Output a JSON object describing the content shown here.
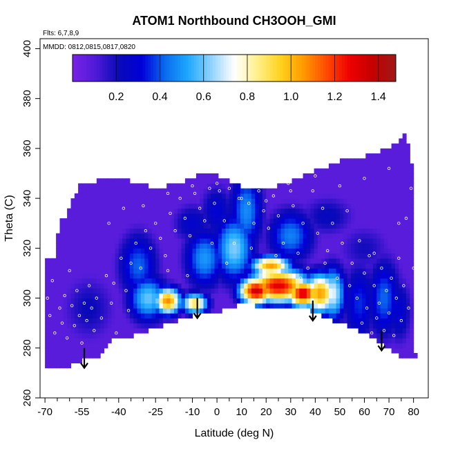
{
  "chart_data": {
    "type": "heatmap",
    "title": "ATOM1 Northbound CH3OOH_GMI",
    "annotations": [
      "Flts: 6,7,8,9",
      "MMDD: 0812,0815,0817,0820"
    ],
    "xlabel": "Latitude (deg N)",
    "ylabel": "Theta (C)",
    "xlim": [
      -72,
      86
    ],
    "ylim": [
      260,
      404
    ],
    "x_ticks_major": [
      -70,
      -55,
      -40,
      -25,
      -10,
      0,
      10,
      20,
      30,
      40,
      50,
      60,
      70,
      80
    ],
    "x_tick_labels": [
      "-70",
      "-55",
      "-40",
      "-25",
      "-10",
      "0",
      "10",
      "20",
      "30",
      "40",
      "50",
      "60",
      "70",
      "80"
    ],
    "x_ticks_minor": [
      -65,
      -60,
      -50,
      -45,
      -35,
      -30,
      -20,
      -15,
      -5,
      5,
      15,
      25,
      35,
      45,
      55,
      65,
      75
    ],
    "y_ticks": [
      260,
      280,
      300,
      320,
      340,
      360,
      380,
      400
    ],
    "y_tick_labels": [
      "260",
      "280",
      "300",
      "320",
      "340",
      "360",
      "380",
      "400"
    ],
    "colorbar": {
      "range": [
        0,
        1.48
      ],
      "ticks": [
        0.2,
        0.4,
        0.6,
        0.8,
        1.0,
        1.2,
        1.4
      ],
      "tick_labels": [
        "0.2",
        "0.4",
        "0.6",
        "0.8",
        "1.0",
        "1.2",
        "1.4"
      ],
      "colors": [
        "#7a23e6",
        "#4e1ad8",
        "#0a0ab8",
        "#0000d8",
        "#0a6af0",
        "#1ea8ff",
        "#8fd2ff",
        "#ffffff",
        "#fff08a",
        "#ffd21e",
        "#ff9a00",
        "#ff4a00",
        "#ee0000",
        "#c40000",
        "#a01818"
      ]
    },
    "region_outline": {
      "top": [
        [
          -70,
          316
        ],
        [
          -66,
          316
        ],
        [
          -64,
          331
        ],
        [
          -61,
          333
        ],
        [
          -59,
          339
        ],
        [
          -56,
          345
        ],
        [
          -45,
          348
        ],
        [
          -35,
          347
        ],
        [
          -25,
          344
        ],
        [
          -15,
          346
        ],
        [
          -8,
          349
        ],
        [
          0,
          349
        ],
        [
          10,
          345
        ],
        [
          20,
          343
        ],
        [
          30,
          347
        ],
        [
          40,
          351
        ],
        [
          50,
          355
        ],
        [
          60,
          357
        ],
        [
          70,
          360
        ],
        [
          75,
          364
        ],
        [
          77,
          366
        ],
        [
          78,
          360
        ],
        [
          80,
          350
        ],
        [
          80.5,
          330
        ],
        [
          80.5,
          310
        ],
        [
          80.5,
          277
        ]
      ],
      "bottom": [
        [
          80.5,
          276
        ],
        [
          76,
          276
        ],
        [
          70,
          280
        ],
        [
          60,
          286
        ],
        [
          50,
          290
        ],
        [
          40,
          294
        ],
        [
          35,
          296
        ],
        [
          28,
          295
        ],
        [
          20,
          296
        ],
        [
          10,
          298
        ],
        [
          0,
          294
        ],
        [
          -10,
          293
        ],
        [
          -18,
          290
        ],
        [
          -28,
          287
        ],
        [
          -38,
          284
        ],
        [
          -43,
          283
        ],
        [
          -48,
          276
        ],
        [
          -55,
          275
        ],
        [
          -60,
          273
        ],
        [
          -65,
          272
        ],
        [
          -70,
          272
        ]
      ]
    },
    "field_blobs": [
      {
        "x": 12,
        "y": 335,
        "v": 0.48,
        "sx": 5,
        "sy": 12
      },
      {
        "x": 7,
        "y": 320,
        "v": 0.62,
        "sx": 6,
        "sy": 10
      },
      {
        "x": -5,
        "y": 316,
        "v": 0.5,
        "sx": 6,
        "sy": 9
      },
      {
        "x": 30,
        "y": 325,
        "v": 0.46,
        "sx": 7,
        "sy": 8
      },
      {
        "x": 25,
        "y": 305,
        "v": 1.3,
        "sx": 9,
        "sy": 5
      },
      {
        "x": 16,
        "y": 303,
        "v": 1.35,
        "sx": 5,
        "sy": 4
      },
      {
        "x": 35,
        "y": 302,
        "v": 1.32,
        "sx": 5,
        "sy": 4
      },
      {
        "x": 22,
        "y": 313,
        "v": 1.05,
        "sx": 6,
        "sy": 3
      },
      {
        "x": 42,
        "y": 302,
        "v": 1.05,
        "sx": 5,
        "sy": 6
      },
      {
        "x": 47,
        "y": 302,
        "v": 0.72,
        "sx": 4,
        "sy": 8
      },
      {
        "x": -20,
        "y": 299,
        "v": 1.08,
        "sx": 4,
        "sy": 4
      },
      {
        "x": -9,
        "y": 298,
        "v": 0.92,
        "sx": 4,
        "sy": 3
      },
      {
        "x": -28,
        "y": 300,
        "v": 0.6,
        "sx": 6,
        "sy": 7
      },
      {
        "x": -32,
        "y": 313,
        "v": 0.42,
        "sx": 6,
        "sy": 10
      },
      {
        "x": -52,
        "y": 296,
        "v": 0.22,
        "sx": 8,
        "sy": 10
      },
      {
        "x": 58,
        "y": 298,
        "v": 0.36,
        "sx": 5,
        "sy": 12
      },
      {
        "x": 68,
        "y": 300,
        "v": 0.42,
        "sx": 5,
        "sy": 12
      },
      {
        "x": 74,
        "y": 295,
        "v": 0.3,
        "sx": 4,
        "sy": 10
      },
      {
        "x": 0,
        "y": 335,
        "v": 0.3,
        "sx": 5,
        "sy": 8
      },
      {
        "x": -10,
        "y": 330,
        "v": 0.28,
        "sx": 6,
        "sy": 6
      },
      {
        "x": 45,
        "y": 333,
        "v": 0.24,
        "sx": 8,
        "sy": 6
      },
      {
        "x": 60,
        "y": 320,
        "v": 0.2,
        "sx": 8,
        "sy": 7
      }
    ],
    "field_base": 0.08,
    "flight_samples": [
      [
        -69,
        300
      ],
      [
        -68,
        293
      ],
      [
        -67,
        307
      ],
      [
        -66,
        286
      ],
      [
        -64,
        296
      ],
      [
        -63,
        290
      ],
      [
        -62,
        301
      ],
      [
        -61,
        284
      ],
      [
        -60,
        311
      ],
      [
        -59,
        297
      ],
      [
        -58,
        289
      ],
      [
        -57,
        303
      ],
      [
        -56,
        293
      ],
      [
        -55,
        282
      ],
      [
        -54,
        298
      ],
      [
        -53,
        291
      ],
      [
        -52,
        305
      ],
      [
        -51,
        296
      ],
      [
        -50,
        287
      ],
      [
        -49,
        300
      ],
      [
        -47,
        292
      ],
      [
        -45,
        309
      ],
      [
        -43,
        298
      ],
      [
        -41,
        286
      ],
      [
        -39,
        316
      ],
      [
        -37,
        303
      ],
      [
        -35,
        314
      ],
      [
        -33,
        322
      ],
      [
        -31,
        312
      ],
      [
        -29,
        327
      ],
      [
        -27,
        320
      ],
      [
        -25,
        330
      ],
      [
        -23,
        324
      ],
      [
        -21,
        317
      ],
      [
        -19,
        334
      ],
      [
        -17,
        327
      ],
      [
        -15,
        340
      ],
      [
        -13,
        332
      ],
      [
        -11,
        325
      ],
      [
        -9,
        342
      ],
      [
        -7,
        336
      ],
      [
        -5,
        331
      ],
      [
        -3,
        344
      ],
      [
        -1,
        338
      ],
      [
        1,
        343
      ],
      [
        3,
        331
      ],
      [
        5,
        344
      ],
      [
        7,
        322
      ],
      [
        9,
        340
      ],
      [
        11,
        346
      ],
      [
        13,
        338
      ],
      [
        15,
        330
      ],
      [
        17,
        343
      ],
      [
        19,
        335
      ],
      [
        21,
        328
      ],
      [
        23,
        341
      ],
      [
        25,
        333
      ],
      [
        27,
        322
      ],
      [
        29,
        346
      ],
      [
        31,
        337
      ],
      [
        33,
        318
      ],
      [
        35,
        330
      ],
      [
        37,
        312
      ],
      [
        39,
        343
      ],
      [
        41,
        326
      ],
      [
        43,
        336
      ],
      [
        45,
        319
      ],
      [
        47,
        330
      ],
      [
        49,
        308
      ],
      [
        51,
        322
      ],
      [
        53,
        335
      ],
      [
        55,
        314
      ],
      [
        57,
        300
      ],
      [
        58,
        323
      ],
      [
        59,
        290
      ],
      [
        60,
        310
      ],
      [
        61,
        296
      ],
      [
        62,
        317
      ],
      [
        63,
        286
      ],
      [
        64,
        305
      ],
      [
        65,
        292
      ],
      [
        66,
        298
      ],
      [
        67,
        312
      ],
      [
        68,
        287
      ],
      [
        69,
        303
      ],
      [
        70,
        294
      ],
      [
        71,
        308
      ],
      [
        72,
        285
      ],
      [
        73,
        300
      ],
      [
        74,
        316
      ],
      [
        75,
        291
      ],
      [
        76,
        305
      ],
      [
        77,
        332
      ],
      [
        78,
        296
      ],
      [
        79,
        344
      ],
      [
        80,
        312
      ],
      [
        -44,
        330
      ],
      [
        -38,
        336
      ],
      [
        -30,
        337
      ],
      [
        -20,
        342
      ],
      [
        -10,
        345
      ],
      [
        0,
        346
      ],
      [
        10,
        340
      ],
      [
        20,
        339
      ],
      [
        30,
        343
      ],
      [
        40,
        349
      ],
      [
        50,
        345
      ],
      [
        60,
        348
      ],
      [
        70,
        352
      ],
      [
        -42,
        306
      ],
      [
        -36,
        295
      ],
      [
        -20,
        311
      ],
      [
        -12,
        309
      ],
      [
        -2,
        322
      ],
      [
        4,
        314
      ],
      [
        14,
        320
      ],
      [
        24,
        317
      ],
      [
        34,
        308
      ],
      [
        44,
        314
      ],
      [
        54,
        305
      ],
      [
        64,
        318
      ],
      [
        74,
        330
      ]
    ],
    "arrows": [
      {
        "x": -54,
        "y_top": 280,
        "y_tip": 272
      },
      {
        "x": -8,
        "y_top": 300,
        "y_tip": 292
      },
      {
        "x": 39,
        "y_top": 299,
        "y_tip": 291
      },
      {
        "x": 67,
        "y_top": 287,
        "y_tip": 279
      }
    ]
  }
}
